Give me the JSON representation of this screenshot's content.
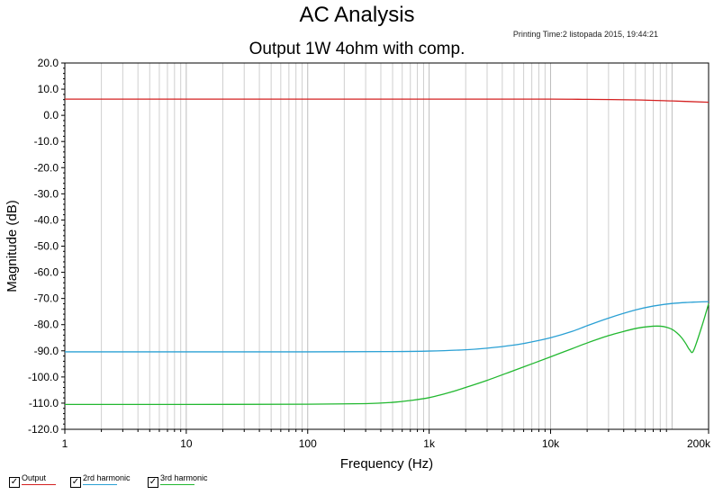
{
  "header": {
    "title": "AC Analysis",
    "printing_time": "Printing Time:2 listopada 2015, 19:44:21"
  },
  "chart_data": {
    "type": "line",
    "title": "Output 1W 4ohm with comp.",
    "xlabel": "Frequency (Hz)",
    "ylabel": "Magnitude (dB)",
    "x_scale": "log",
    "xlim": [
      1,
      200000
    ],
    "ylim": [
      -120,
      20
    ],
    "x_tick_labels": [
      "1",
      "10",
      "100",
      "1k",
      "10k",
      "200k"
    ],
    "x_tick_values": [
      1,
      10,
      100,
      1000,
      10000,
      200000
    ],
    "y_tick_labels": [
      "20.0",
      "10.0",
      "0.0",
      "-10.0",
      "-20.0",
      "-30.0",
      "-40.0",
      "-50.0",
      "-60.0",
      "-70.0",
      "-80.0",
      "-90.0",
      "-100.0",
      "-110.0",
      "-120.0"
    ],
    "y_tick_values": [
      20,
      10,
      0,
      -10,
      -20,
      -30,
      -40,
      -50,
      -60,
      -70,
      -80,
      -90,
      -100,
      -110,
      -120
    ],
    "grid": true,
    "legend_position": "bottom-left",
    "series": [
      {
        "name": "Output",
        "color": "#d42020",
        "x": [
          1,
          10,
          100,
          1000,
          10000,
          20000,
          50000,
          100000,
          200000
        ],
        "y": [
          6.2,
          6.2,
          6.2,
          6.2,
          6.2,
          6.1,
          5.9,
          5.5,
          5.0
        ]
      },
      {
        "name": "2rd harmonic",
        "color": "#2aa0d4",
        "x": [
          1,
          10,
          100,
          500,
          1000,
          2000,
          3000,
          5000,
          7000,
          10000,
          15000,
          20000,
          30000,
          50000,
          70000,
          100000,
          150000,
          200000
        ],
        "y": [
          -90.4,
          -90.4,
          -90.4,
          -90.3,
          -90.1,
          -89.6,
          -89.0,
          -87.8,
          -86.6,
          -85.0,
          -82.6,
          -80.4,
          -77.5,
          -74.4,
          -72.9,
          -71.9,
          -71.4,
          -71.2
        ]
      },
      {
        "name": "3rd harmonic",
        "color": "#22b830",
        "x": [
          1,
          10,
          100,
          300,
          500,
          700,
          1000,
          1500,
          2000,
          3000,
          5000,
          7000,
          10000,
          15000,
          20000,
          30000,
          40000,
          50000,
          60000,
          70000,
          80000,
          90000,
          100000,
          110000,
          120000,
          130000,
          140000,
          150000,
          175000,
          200000
        ],
        "y": [
          -110.5,
          -110.5,
          -110.4,
          -110.2,
          -109.7,
          -109.0,
          -107.9,
          -105.8,
          -104.0,
          -101.3,
          -97.5,
          -95.0,
          -92.3,
          -89.2,
          -87.0,
          -84.2,
          -82.6,
          -81.5,
          -80.9,
          -80.6,
          -80.6,
          -81.0,
          -81.8,
          -83.2,
          -85.0,
          -87.3,
          -89.7,
          -90.0,
          -81.0,
          -72.0
        ]
      }
    ]
  }
}
